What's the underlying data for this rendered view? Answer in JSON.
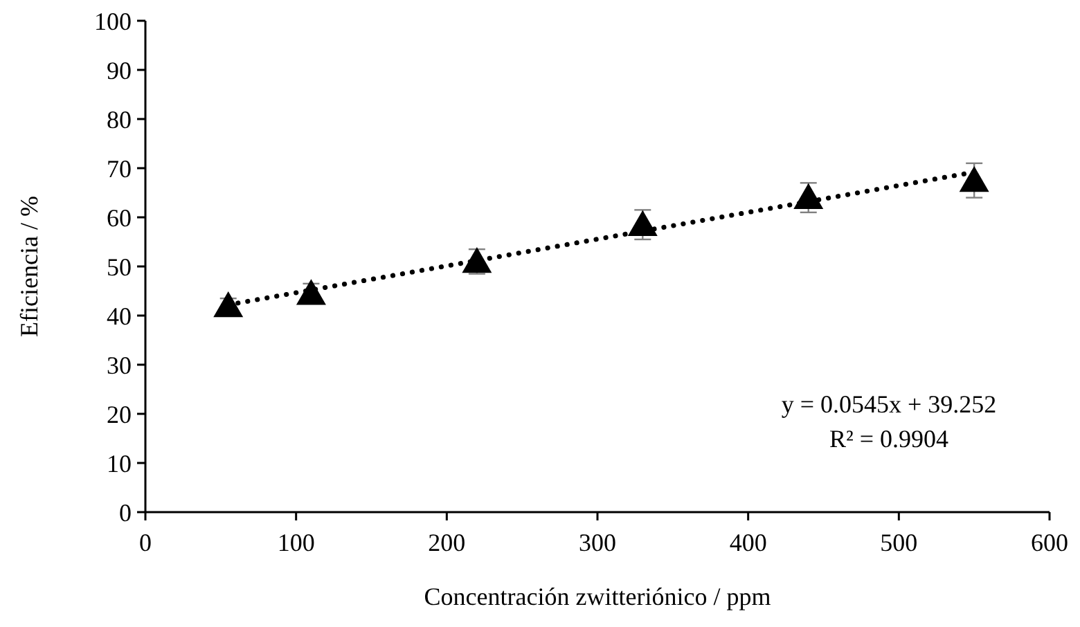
{
  "chart_data": {
    "type": "scatter",
    "xlabel": "Concentración zwitteriónico / ppm",
    "ylabel": "Eficiencia / %",
    "xlim": [
      0,
      600
    ],
    "xticks": [
      0,
      100,
      200,
      300,
      400,
      500,
      600
    ],
    "ylim": [
      0,
      100
    ],
    "yticks": [
      0,
      10,
      20,
      30,
      40,
      50,
      60,
      70,
      80,
      90,
      100
    ],
    "grid": false,
    "series": [
      {
        "color": "#000000",
        "marker": "triangle",
        "x": [
          55,
          110,
          220,
          330,
          440,
          550
        ],
        "values": [
          42,
          44.5,
          51,
          58.5,
          64,
          67.5
        ],
        "errors": [
          1.5,
          2,
          2.5,
          3,
          3,
          3.5
        ]
      },
      {
        "type": "line",
        "color": "#000000",
        "marker": "none",
        "line_style": "dotted",
        "x": [
          55,
          550
        ],
        "values": [
          42.2,
          69.2
        ]
      }
    ],
    "annotations": [
      "y = 0.0545x + 39.252",
      "R² = 0.9904"
    ]
  }
}
